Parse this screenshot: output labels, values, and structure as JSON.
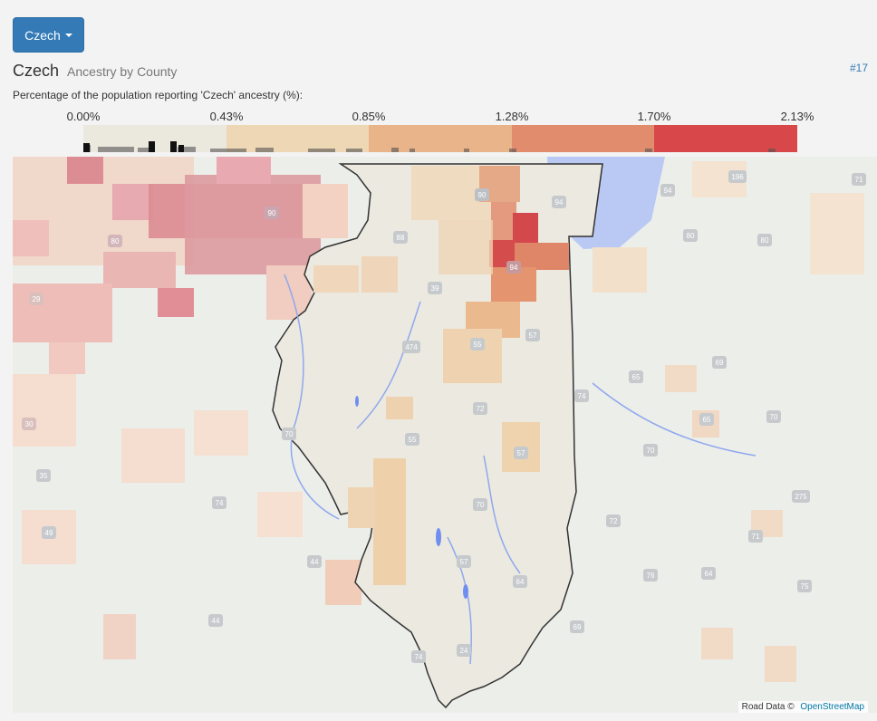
{
  "dropdown": {
    "label": "Czech"
  },
  "heading": {
    "title": "Czech",
    "subtitle": "Ancestry by County"
  },
  "rank_link": "#17",
  "legend": {
    "caption": "Percentage of the population reporting 'Czech' ancestry (%):",
    "ticks": [
      "0.00%",
      "0.43%",
      "0.85%",
      "1.28%",
      "1.70%",
      "2.13%"
    ],
    "colors": [
      "#ebe8dd",
      "#eed7b4",
      "#e9b48a",
      "#e08c6d",
      "#d8484a"
    ]
  },
  "map": {
    "road_shields": [
      "90",
      "90",
      "88",
      "80",
      "94",
      "94",
      "39",
      "474",
      "55",
      "57",
      "74",
      "72",
      "57",
      "55",
      "57",
      "64",
      "70",
      "74",
      "70",
      "24",
      "94",
      "196",
      "80",
      "80",
      "65",
      "65",
      "70",
      "69",
      "71",
      "275",
      "71",
      "75",
      "64",
      "30",
      "35",
      "29",
      "44",
      "49",
      "44",
      "69",
      "74",
      "70",
      "72",
      "76"
    ]
  },
  "attribution": {
    "text": "Road Data ©",
    "link": "OpenStreetMap"
  }
}
